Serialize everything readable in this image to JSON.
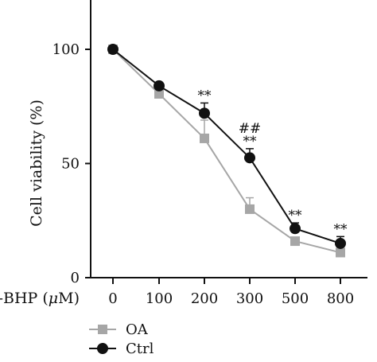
{
  "chart_data": {
    "type": "line",
    "title": "",
    "ylabel": "Cell viability (%)",
    "xlabel_prefix": "t-BHP (",
    "xlabel_unit": "μ",
    "xlabel_suffix": "M)",
    "categories": [
      "0",
      "100",
      "200",
      "300",
      "500",
      "800"
    ],
    "ylim": [
      0,
      100
    ],
    "yticks": [
      0,
      50,
      100
    ],
    "grid": false,
    "legend_position": "bottom-left",
    "series": [
      {
        "name": "OA",
        "marker": "square",
        "color": "#a6a6a6",
        "values": [
          100,
          80.5,
          61,
          30,
          16,
          11
        ],
        "errors": [
          0,
          1.5,
          8,
          5,
          1.5,
          1.5
        ]
      },
      {
        "name": "Ctrl",
        "marker": "circle",
        "color": "#111111",
        "values": [
          100,
          84,
          72,
          52.5,
          21.5,
          15
        ],
        "errors": [
          0,
          1.5,
          4.5,
          4,
          2.5,
          3
        ]
      }
    ],
    "annotations": [
      {
        "category": "200",
        "lines": [
          "**"
        ]
      },
      {
        "category": "300",
        "lines": [
          "##",
          "**"
        ]
      },
      {
        "category": "500",
        "lines": [
          "**"
        ]
      },
      {
        "category": "800",
        "lines": [
          "**"
        ]
      }
    ]
  }
}
